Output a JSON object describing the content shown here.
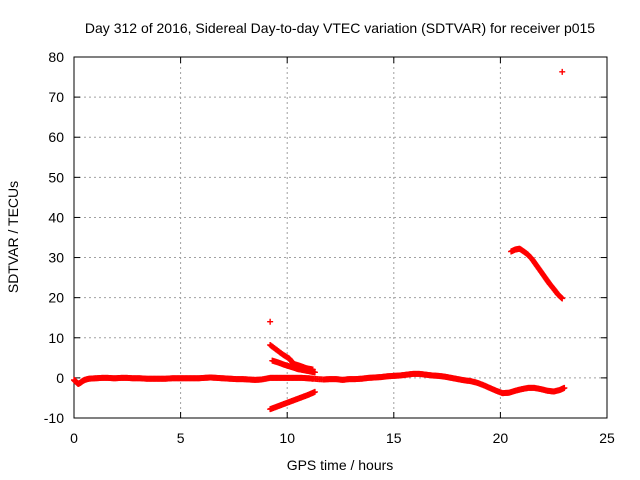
{
  "chart_data": {
    "type": "scatter",
    "title": "Day 312 of 2016, Sidereal Day-to-day VTEC variation (SDTVAR) for receiver p015",
    "xlabel": "GPS time / hours",
    "ylabel": "SDTVAR / TECUs",
    "xlim": [
      0,
      25
    ],
    "ylim": [
      -10,
      80
    ],
    "xticks": [
      0,
      5,
      10,
      15,
      20,
      25
    ],
    "yticks": [
      -10,
      0,
      10,
      20,
      30,
      40,
      50,
      60,
      70,
      80
    ],
    "grid": true,
    "marker": "+",
    "color": "#ff0000",
    "series": [
      {
        "name": "main_near_zero",
        "points": [
          [
            0.0,
            -0.5
          ],
          [
            0.1,
            -1.0
          ],
          [
            0.2,
            -1.5
          ],
          [
            0.3,
            -1.2
          ],
          [
            0.4,
            -0.8
          ],
          [
            0.5,
            -0.5
          ],
          [
            0.7,
            -0.2
          ],
          [
            1.0,
            -0.1
          ],
          [
            1.3,
            0.0
          ],
          [
            1.6,
            0.0
          ],
          [
            1.9,
            -0.1
          ],
          [
            2.2,
            0.0
          ],
          [
            2.5,
            0.0
          ],
          [
            2.8,
            -0.1
          ],
          [
            3.1,
            -0.1
          ],
          [
            3.4,
            -0.2
          ],
          [
            3.7,
            -0.2
          ],
          [
            4.0,
            -0.2
          ],
          [
            4.3,
            -0.2
          ],
          [
            4.6,
            -0.1
          ],
          [
            4.9,
            -0.1
          ],
          [
            5.2,
            -0.1
          ],
          [
            5.5,
            -0.1
          ],
          [
            5.8,
            -0.1
          ],
          [
            6.1,
            0.0
          ],
          [
            6.4,
            0.1
          ],
          [
            6.7,
            0.0
          ],
          [
            7.0,
            -0.1
          ],
          [
            7.3,
            -0.2
          ],
          [
            7.6,
            -0.3
          ],
          [
            7.9,
            -0.3
          ],
          [
            8.2,
            -0.4
          ],
          [
            8.5,
            -0.5
          ],
          [
            8.8,
            -0.4
          ],
          [
            9.2,
            0.0
          ],
          [
            9.5,
            0.0
          ],
          [
            9.8,
            0.0
          ],
          [
            10.1,
            0.0
          ],
          [
            10.4,
            0.0
          ],
          [
            10.7,
            0.0
          ],
          [
            11.0,
            -0.1
          ],
          [
            11.2,
            -0.2
          ],
          [
            11.7,
            -0.4
          ],
          [
            12.0,
            -0.3
          ],
          [
            12.3,
            -0.3
          ],
          [
            12.6,
            -0.5
          ],
          [
            12.9,
            -0.3
          ],
          [
            13.2,
            -0.3
          ],
          [
            13.5,
            -0.2
          ],
          [
            13.8,
            0.0
          ],
          [
            14.1,
            0.1
          ],
          [
            14.4,
            0.2
          ],
          [
            14.7,
            0.4
          ],
          [
            15.0,
            0.5
          ],
          [
            15.3,
            0.6
          ],
          [
            15.6,
            0.8
          ],
          [
            15.9,
            1.0
          ],
          [
            16.2,
            1.0
          ],
          [
            16.5,
            0.8
          ],
          [
            16.8,
            0.6
          ],
          [
            17.1,
            0.5
          ],
          [
            17.4,
            0.3
          ],
          [
            17.7,
            0.0
          ],
          [
            18.0,
            -0.3
          ],
          [
            18.3,
            -0.6
          ],
          [
            18.6,
            -0.8
          ],
          [
            18.9,
            -1.2
          ],
          [
            19.2,
            -1.8
          ],
          [
            19.5,
            -2.5
          ],
          [
            19.8,
            -3.2
          ],
          [
            20.1,
            -3.8
          ],
          [
            20.4,
            -3.7
          ],
          [
            20.7,
            -3.2
          ],
          [
            21.0,
            -2.8
          ],
          [
            21.3,
            -2.5
          ],
          [
            21.6,
            -2.5
          ],
          [
            21.9,
            -2.8
          ],
          [
            22.2,
            -3.2
          ],
          [
            22.5,
            -3.4
          ],
          [
            22.8,
            -3.0
          ],
          [
            23.0,
            -2.5
          ]
        ]
      },
      {
        "name": "upper_branch",
        "points": [
          [
            9.2,
            8.2
          ],
          [
            9.5,
            7.0
          ],
          [
            9.8,
            5.8
          ],
          [
            10.1,
            4.8
          ],
          [
            10.3,
            3.5
          ],
          [
            10.6,
            3.0
          ],
          [
            10.9,
            2.4
          ],
          [
            11.2,
            2.1
          ]
        ]
      },
      {
        "name": "middle_branch",
        "points": [
          [
            9.3,
            4.3
          ],
          [
            9.6,
            3.8
          ],
          [
            9.9,
            3.2
          ],
          [
            10.2,
            2.7
          ],
          [
            10.5,
            2.2
          ],
          [
            10.8,
            1.9
          ],
          [
            11.1,
            1.6
          ],
          [
            11.3,
            1.4
          ]
        ]
      },
      {
        "name": "lower_branch",
        "points": [
          [
            9.2,
            -7.8
          ],
          [
            9.5,
            -7.2
          ],
          [
            9.8,
            -6.6
          ],
          [
            10.1,
            -6.0
          ],
          [
            10.4,
            -5.4
          ],
          [
            10.7,
            -4.8
          ],
          [
            11.0,
            -4.2
          ],
          [
            11.3,
            -3.5
          ]
        ]
      },
      {
        "name": "late_high_branch",
        "points": [
          [
            20.5,
            31.5
          ],
          [
            20.7,
            32.0
          ],
          [
            20.9,
            32.2
          ],
          [
            21.1,
            31.5
          ],
          [
            21.3,
            30.7
          ],
          [
            21.5,
            29.5
          ],
          [
            21.7,
            28.0
          ],
          [
            21.9,
            26.5
          ],
          [
            22.1,
            25.0
          ],
          [
            22.3,
            23.5
          ],
          [
            22.5,
            22.2
          ],
          [
            22.7,
            20.8
          ],
          [
            22.9,
            19.8
          ]
        ]
      },
      {
        "name": "outliers",
        "points": [
          [
            9.2,
            14.0
          ],
          [
            22.9,
            76.3
          ]
        ]
      }
    ]
  }
}
